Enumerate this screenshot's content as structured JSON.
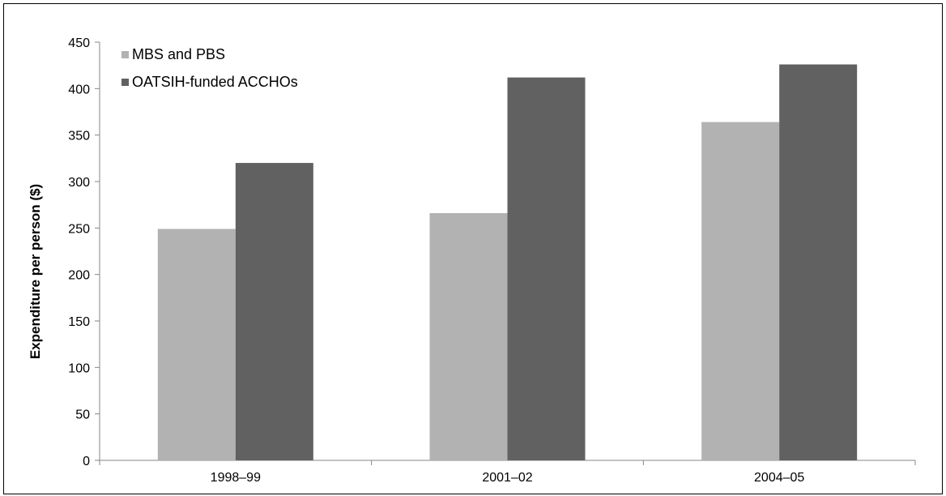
{
  "chart_data": {
    "type": "bar",
    "title": "",
    "xlabel": "",
    "ylabel": "Expenditure per person ($)",
    "categories": [
      "1998–99",
      "2001–02",
      "2004–05"
    ],
    "series": [
      {
        "name": "MBS and PBS",
        "color": "#b2b2b2",
        "values": [
          249,
          266,
          364
        ]
      },
      {
        "name": "OATSIH-funded ACCHOs",
        "color": "#616161",
        "values": [
          320,
          412,
          426
        ]
      }
    ],
    "ylim": [
      0,
      450
    ],
    "yticks": [
      0,
      50,
      100,
      150,
      200,
      250,
      300,
      350,
      400,
      450
    ],
    "grid": false,
    "legend_position": "top-left"
  }
}
